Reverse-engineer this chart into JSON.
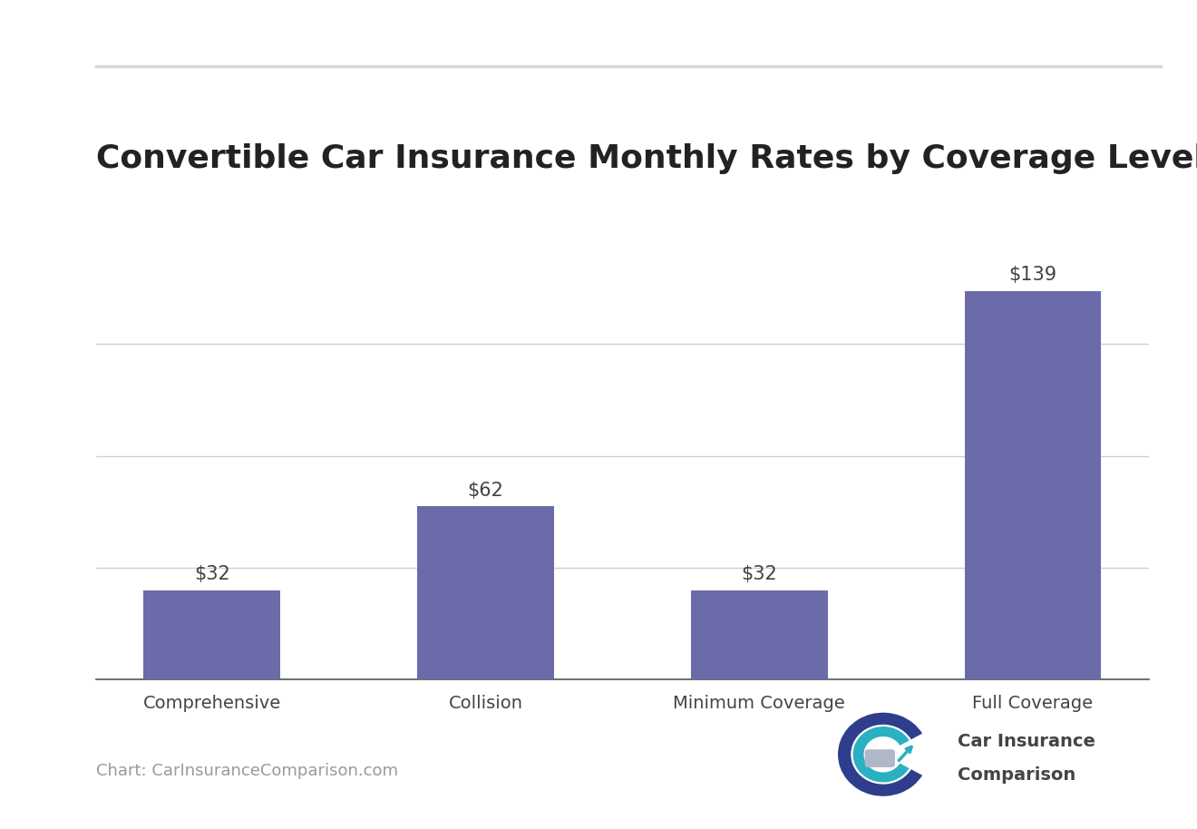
{
  "title": "Convertible Car Insurance Monthly Rates by Coverage Level",
  "categories": [
    "Comprehensive",
    "Collision",
    "Minimum Coverage",
    "Full Coverage"
  ],
  "values": [
    32,
    62,
    32,
    139
  ],
  "bar_color": "#6b6baa",
  "background_color": "#ffffff",
  "title_fontsize": 26,
  "annotation_fontsize": 15,
  "tick_fontsize": 14,
  "ylim": [
    0,
    160
  ],
  "grid_color": "#d0d0d0",
  "source_text": "Chart: CarInsuranceComparison.com",
  "source_fontsize": 13,
  "source_color": "#999999",
  "top_line_color": "#d8d8d8",
  "annotation_prefix": "$",
  "logo_text_line1": "Car Insurance",
  "logo_text_line2": "Comparison",
  "logo_fontsize": 14,
  "logo_color": "#444444"
}
